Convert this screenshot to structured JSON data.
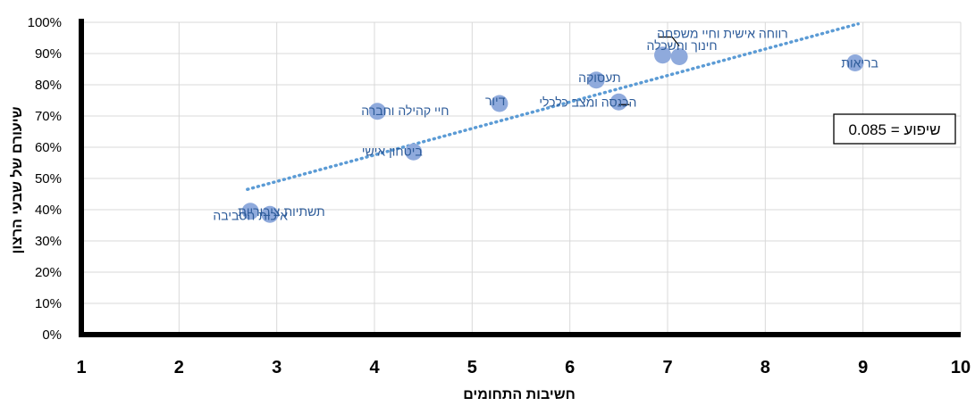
{
  "chart_data": {
    "type": "scatter",
    "title": "",
    "xlabel": "חשיבות התחומים",
    "ylabel": "שיעורם של שבעי הרצון",
    "xlim": [
      1,
      10
    ],
    "ylim": [
      0,
      100
    ],
    "x_ticks": [
      "1",
      "2",
      "3",
      "4",
      "5",
      "6",
      "7",
      "8",
      "9",
      "10"
    ],
    "y_ticks": [
      "0%",
      "10%",
      "20%",
      "30%",
      "40%",
      "50%",
      "60%",
      "70%",
      "80%",
      "90%",
      "100%"
    ],
    "grid": true,
    "points": [
      {
        "label": "בריאות",
        "x": 8.92,
        "y": 87
      },
      {
        "label": "רווחה אישית וחיי משפחה",
        "x": 7.12,
        "y": 89
      },
      {
        "label": "חינוך והשכלה",
        "x": 6.95,
        "y": 89.5
      },
      {
        "label": "תעסוקה",
        "x": 6.27,
        "y": 81.5
      },
      {
        "label": "הכנסה ומצב כלכלי",
        "x": 6.5,
        "y": 74.5
      },
      {
        "label": "דיור",
        "x": 5.28,
        "y": 74
      },
      {
        "label": "חיי קהילה וחברה",
        "x": 4.03,
        "y": 71.5
      },
      {
        "label": "ביטחון אישי",
        "x": 4.4,
        "y": 58.5
      },
      {
        "label": "תשתיות ציבוריות",
        "x": 2.73,
        "y": 39.5
      },
      {
        "label": "איכות הסביבה",
        "x": 2.93,
        "y": 38.5
      }
    ],
    "trendline": {
      "x": [
        2.7,
        8.95
      ],
      "y": [
        46.5,
        99.5
      ]
    },
    "annotation": "שיפוע = 0.085",
    "colors": {
      "point": "#8faadc",
      "label": "#2e5c9a",
      "trendline": "#5b9bd5",
      "grid": "#d9d9d9",
      "axis": "#000000"
    }
  }
}
